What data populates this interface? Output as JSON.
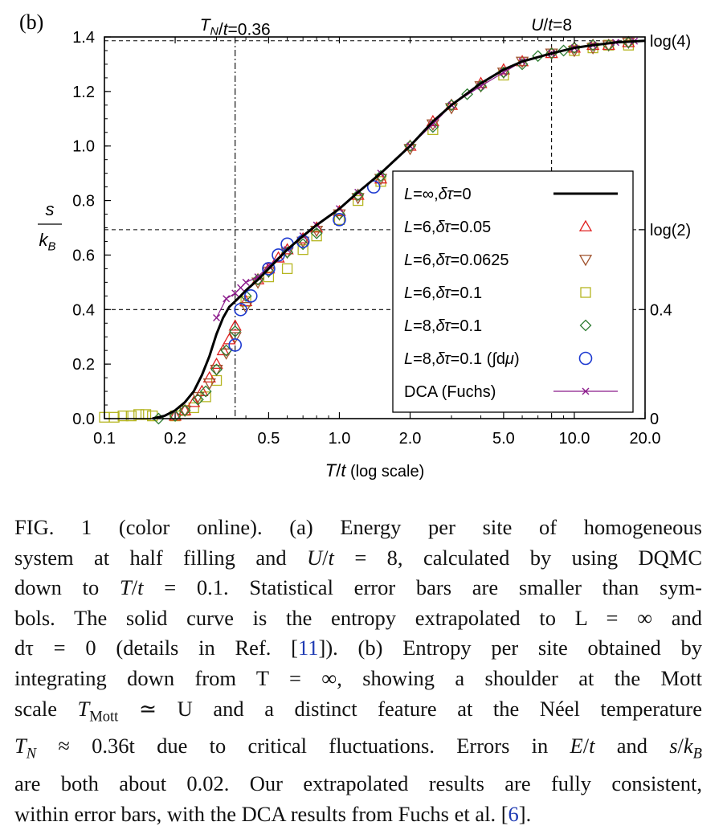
{
  "panel_label": "(b)",
  "chart_data": {
    "type": "line",
    "title": "",
    "xlabel": "T/t (log scale)",
    "ylabel": "s/k_B",
    "x_scale": "log",
    "xlim": [
      0.1,
      20.0
    ],
    "ylim": [
      0.0,
      1.4
    ],
    "x_ticks": [
      "0.1",
      "0.2",
      "0.5",
      "1.0",
      "2.0",
      "5.0",
      "10.0",
      "20.0"
    ],
    "y_ticks": [
      "0.0",
      "0.2",
      "0.4",
      "0.6",
      "0.8",
      "1.0",
      "1.2",
      "1.4"
    ],
    "right_axis_ticks": [
      {
        "value": 1.386,
        "label": "log(4)"
      },
      {
        "value": 0.693,
        "label": "log(2)"
      },
      {
        "value": 0.4,
        "label": "0.4"
      },
      {
        "value": 0.0,
        "label": "0"
      }
    ],
    "top_annotations": [
      {
        "x": 0.36,
        "label": "T_N/t=0.36"
      },
      {
        "x": 8.0,
        "label": "U/t=8"
      }
    ],
    "reference_lines": [
      {
        "orientation": "horizontal",
        "y": 1.386,
        "style": "dashed"
      },
      {
        "orientation": "horizontal",
        "y": 0.693,
        "style": "dashed"
      },
      {
        "orientation": "horizontal",
        "y": 0.4,
        "style": "dashed"
      },
      {
        "orientation": "vertical",
        "x": 0.36,
        "style": "dash-dot"
      },
      {
        "orientation": "vertical",
        "x": 8.0,
        "style": "dashed"
      }
    ],
    "grid": false,
    "legend_position": "lower-right",
    "series": [
      {
        "name": "L=∞,δτ=0",
        "marker": "line",
        "color": "#000000",
        "x": [
          0.16,
          0.18,
          0.2,
          0.22,
          0.24,
          0.26,
          0.28,
          0.3,
          0.32,
          0.34,
          0.36,
          0.38,
          0.4,
          0.45,
          0.5,
          0.6,
          0.7,
          0.8,
          1.0,
          1.2,
          1.5,
          2.0,
          2.5,
          3.0,
          4.0,
          5.0,
          6.0,
          8.0,
          10.0,
          12.0,
          15.0,
          20.0
        ],
        "y": [
          0.0,
          0.01,
          0.03,
          0.06,
          0.1,
          0.16,
          0.23,
          0.31,
          0.37,
          0.41,
          0.43,
          0.45,
          0.47,
          0.51,
          0.55,
          0.62,
          0.67,
          0.71,
          0.77,
          0.83,
          0.9,
          1.0,
          1.09,
          1.15,
          1.23,
          1.28,
          1.31,
          1.34,
          1.36,
          1.37,
          1.38,
          1.386
        ]
      },
      {
        "name": "L=6,δτ=0.05",
        "marker": "triangle-up",
        "color": "#e02020",
        "x": [
          0.2,
          0.22,
          0.24,
          0.26,
          0.28,
          0.3,
          0.32,
          0.34,
          0.36,
          0.4,
          0.45,
          0.5,
          0.55,
          0.6,
          0.7,
          0.8,
          1.0,
          1.2,
          1.5,
          2.0,
          2.5,
          3.0,
          4.0,
          5.0,
          6.0,
          8.0,
          10.0,
          12.0,
          14.0,
          17.0
        ],
        "y": [
          0.01,
          0.03,
          0.06,
          0.1,
          0.15,
          0.2,
          0.25,
          0.29,
          0.34,
          0.43,
          0.51,
          0.55,
          0.59,
          0.62,
          0.66,
          0.7,
          0.76,
          0.82,
          0.88,
          1.0,
          1.09,
          1.15,
          1.23,
          1.28,
          1.31,
          1.34,
          1.36,
          1.37,
          1.37,
          1.38
        ]
      },
      {
        "name": "L=6,δτ=0.0625",
        "marker": "triangle-down",
        "color": "#a0522d",
        "x": [
          0.22,
          0.25,
          0.28,
          0.3,
          0.33,
          0.36,
          0.4,
          0.45,
          0.5,
          0.6,
          0.7,
          0.8,
          1.0,
          1.2,
          1.5,
          2.0,
          2.5,
          3.0,
          4.0,
          5.0,
          6.0,
          8.0,
          10.0,
          12.0,
          14.0,
          17.0
        ],
        "y": [
          0.03,
          0.08,
          0.13,
          0.18,
          0.24,
          0.3,
          0.41,
          0.5,
          0.54,
          0.61,
          0.65,
          0.69,
          0.75,
          0.81,
          0.88,
          0.99,
          1.08,
          1.14,
          1.22,
          1.27,
          1.31,
          1.34,
          1.35,
          1.36,
          1.37,
          1.38
        ]
      },
      {
        "name": "L=6,δτ=0.1",
        "marker": "square",
        "color": "#b5b520",
        "x": [
          0.1,
          0.11,
          0.12,
          0.13,
          0.14,
          0.15,
          0.16,
          0.2,
          0.22,
          0.24,
          0.27,
          0.3,
          0.4,
          0.5,
          0.6,
          0.7,
          0.8,
          1.0,
          1.2,
          1.5,
          2.5,
          5.0,
          10.0,
          12.0,
          14.0,
          17.0
        ],
        "y": [
          0.005,
          0.005,
          0.01,
          0.01,
          0.015,
          0.015,
          0.01,
          0.01,
          0.03,
          0.04,
          0.08,
          0.14,
          0.43,
          0.52,
          0.55,
          0.62,
          0.67,
          0.73,
          0.8,
          0.87,
          1.06,
          1.26,
          1.35,
          1.36,
          1.37,
          1.37
        ]
      },
      {
        "name": "L=8,δτ=0.1",
        "marker": "diamond",
        "color": "#2e7d32",
        "x": [
          0.17,
          0.2,
          0.22,
          0.25,
          0.27,
          0.3,
          0.33,
          0.36,
          0.4,
          0.45,
          0.5,
          0.6,
          0.7,
          0.8,
          1.0,
          1.2,
          1.5,
          2.0,
          2.5,
          3.0,
          3.5,
          4.0,
          5.0,
          6.0,
          7.0,
          8.0,
          9.0,
          10.0,
          12.0,
          14.0,
          17.0
        ],
        "y": [
          0.0,
          0.01,
          0.03,
          0.07,
          0.1,
          0.18,
          0.25,
          0.32,
          0.45,
          0.51,
          0.54,
          0.61,
          0.64,
          0.68,
          0.75,
          0.82,
          0.89,
          1.0,
          1.07,
          1.15,
          1.19,
          1.22,
          1.27,
          1.3,
          1.33,
          1.34,
          1.35,
          1.36,
          1.37,
          1.37,
          1.38
        ]
      },
      {
        "name": "L=8,δτ=0.1 (∫dμ)",
        "marker": "circle",
        "color": "#1f3bd1",
        "x": [
          0.36,
          0.38,
          0.42,
          0.5,
          0.55,
          0.6,
          0.7,
          1.0,
          1.4
        ],
        "y": [
          0.27,
          0.4,
          0.45,
          0.55,
          0.6,
          0.64,
          0.65,
          0.73,
          0.85
        ]
      },
      {
        "name": "DCA (Fuchs)",
        "marker": "cross-line",
        "color": "#8b1a8b",
        "x": [
          0.3,
          0.33,
          0.36,
          0.38,
          0.4,
          0.45,
          0.5,
          0.6,
          0.7,
          0.8,
          1.0,
          1.2,
          1.5,
          2.0,
          2.5,
          3.0,
          4.0,
          5.0,
          6.0,
          8.0,
          10.0,
          12.0,
          15.0,
          18.0
        ],
        "y": [
          0.37,
          0.44,
          0.46,
          0.48,
          0.5,
          0.52,
          0.56,
          0.62,
          0.67,
          0.71,
          0.77,
          0.83,
          0.9,
          1.0,
          1.08,
          1.15,
          1.22,
          1.27,
          1.31,
          1.34,
          1.36,
          1.37,
          1.38,
          1.385
        ]
      }
    ]
  },
  "caption": {
    "lines": [
      "FIG. 1 (color online).   (a) Energy per site of homogeneous",
      "system at half filling and U/t = 8, calculated by using DQMC",
      "down to T/t = 0.1. Statistical error bars are smaller than sym-",
      "bols. The solid curve is the entropy extrapolated to L = ∞ and",
      "dτ = 0 (details in Ref. [11]). (b) Entropy per site obtained by",
      "integrating down from T = ∞, showing a shoulder at the Mott",
      "scale T_Mott ≃ U and a distinct feature at the Néel temperature",
      "T_N ≈ 0.36t due to critical fluctuations. Errors in E/t and s/k_B",
      "are both about 0.02. Our extrapolated results are fully consistent,",
      "within error bars, with the DCA results from Fuchs et al. [6]."
    ]
  }
}
